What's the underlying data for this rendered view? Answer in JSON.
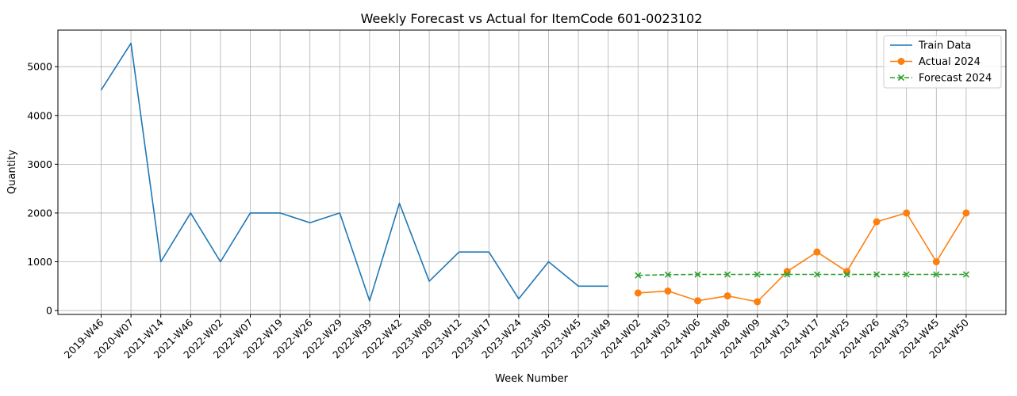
{
  "chart_data": {
    "type": "line",
    "title": "Weekly Forecast vs Actual for ItemCode 601-0023102",
    "xlabel": "Week Number",
    "ylabel": "Quantity",
    "ylim": [
      -80,
      5750
    ],
    "yticks": [
      0,
      1000,
      2000,
      3000,
      4000,
      5000
    ],
    "grid": true,
    "legend_position": "top-right",
    "categories": [
      "2019-W46",
      "2020-W07",
      "2021-W14",
      "2021-W46",
      "2022-W02",
      "2022-W07",
      "2022-W19",
      "2022-W26",
      "2022-W29",
      "2022-W39",
      "2022-W42",
      "2023-W08",
      "2023-W12",
      "2023-W17",
      "2023-W24",
      "2023-W30",
      "2023-W45",
      "2023-W49",
      "2024-W02",
      "2024-W03",
      "2024-W06",
      "2024-W08",
      "2024-W09",
      "2024-W13",
      "2024-W17",
      "2024-W25",
      "2024-W26",
      "2024-W33",
      "2024-W45",
      "2024-W50"
    ],
    "series": [
      {
        "name": "Train Data",
        "color": "#1f77b4",
        "marker": "none",
        "linestyle": "solid",
        "x": [
          "2019-W46",
          "2020-W07",
          "2021-W14",
          "2021-W46",
          "2022-W02",
          "2022-W07",
          "2022-W19",
          "2022-W26",
          "2022-W29",
          "2022-W39",
          "2022-W42",
          "2023-W08",
          "2023-W12",
          "2023-W17",
          "2023-W24",
          "2023-W30",
          "2023-W45",
          "2023-W49"
        ],
        "values": [
          4520,
          5480,
          1000,
          2000,
          1000,
          2000,
          2000,
          1800,
          2000,
          200,
          2200,
          600,
          1200,
          1200,
          240,
          1000,
          500,
          500
        ]
      },
      {
        "name": "Actual 2024",
        "color": "#ff7f0e",
        "marker": "circle",
        "linestyle": "solid",
        "x": [
          "2024-W02",
          "2024-W03",
          "2024-W06",
          "2024-W08",
          "2024-W09",
          "2024-W13",
          "2024-W17",
          "2024-W25",
          "2024-W26",
          "2024-W33",
          "2024-W45",
          "2024-W50"
        ],
        "values": [
          360,
          400,
          200,
          300,
          180,
          800,
          1200,
          800,
          1820,
          2000,
          1000,
          2000
        ]
      },
      {
        "name": "Forecast 2024",
        "color": "#2ca02c",
        "marker": "x",
        "linestyle": "dashed",
        "x": [
          "2024-W02",
          "2024-W03",
          "2024-W06",
          "2024-W08",
          "2024-W09",
          "2024-W13",
          "2024-W17",
          "2024-W25",
          "2024-W26",
          "2024-W33",
          "2024-W45",
          "2024-W50"
        ],
        "values": [
          720,
          735,
          740,
          740,
          740,
          740,
          740,
          740,
          740,
          740,
          740,
          740
        ]
      }
    ]
  }
}
